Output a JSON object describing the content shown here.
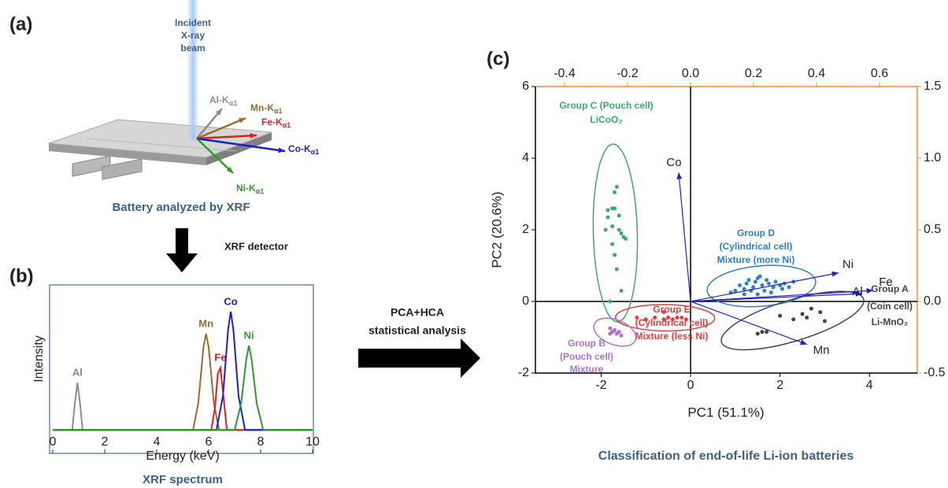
{
  "panels": {
    "a": "(a)",
    "b": "(b)",
    "c": "(c)"
  },
  "diagram": {
    "beam_label": [
      "Incident",
      "X-ray",
      "beam"
    ],
    "emissions": [
      {
        "text": "Al-K",
        "sub": "α1",
        "color": "#8c8c8c"
      },
      {
        "text": "Mn-K",
        "sub": "α1",
        "color": "#9c6a2e"
      },
      {
        "text": "Fe-K",
        "sub": "α1",
        "color": "#e02020"
      },
      {
        "text": "Co-K",
        "sub": "α1",
        "color": "#1f1fc8"
      },
      {
        "text": "Ni-K",
        "sub": "α1",
        "color": "#2e9a2e"
      }
    ],
    "battery_caption": "Battery analyzed by XRF",
    "detector": "XRF detector",
    "analysis": [
      "PCA+HCA",
      "statistical analysis"
    ]
  },
  "chart_data": [
    {
      "type": "line",
      "xlabel": "Energy (keV)",
      "ylabel": "Intensity",
      "caption": "XRF spectrum",
      "xlim": [
        0,
        10
      ],
      "xticks": [
        0,
        2,
        4,
        6,
        8,
        10
      ],
      "ylim": [
        0,
        100
      ],
      "series": [
        {
          "name": "Al",
          "color": "#8c8c8c",
          "x": [
            0,
            0.75,
            0.85,
            0.95,
            1.05,
            1.15,
            10
          ],
          "values": [
            2,
            2,
            20,
            34,
            20,
            2,
            2
          ]
        },
        {
          "name": "Mn",
          "color": "#9c6a2e",
          "x": [
            0,
            5.4,
            5.6,
            5.8,
            5.9,
            6.0,
            6.2,
            6.4,
            10
          ],
          "values": [
            2,
            2,
            20,
            58,
            67,
            58,
            20,
            2,
            2
          ]
        },
        {
          "name": "Fe",
          "color": "#e02020",
          "x": [
            0,
            6.1,
            6.25,
            6.35,
            6.45,
            6.55,
            6.7,
            10
          ],
          "values": [
            2,
            2,
            18,
            40,
            44,
            28,
            2,
            2
          ]
        },
        {
          "name": "Co",
          "color": "#1f1fc8",
          "x": [
            0,
            6.3,
            6.55,
            6.75,
            6.85,
            6.95,
            7.15,
            7.4,
            10
          ],
          "values": [
            2,
            2,
            25,
            70,
            82,
            70,
            25,
            2,
            2
          ]
        },
        {
          "name": "Ni",
          "color": "#2e9a2e",
          "x": [
            0,
            7.0,
            7.25,
            7.45,
            7.55,
            7.65,
            7.85,
            8.1,
            10
          ],
          "values": [
            2,
            2,
            20,
            50,
            59,
            50,
            20,
            2,
            2
          ]
        }
      ]
    },
    {
      "type": "scatter",
      "xlabel": "PC1 (51.1%)",
      "ylabel": "PC2 (20.6%)",
      "caption": "Classification of end-of-life Li-ion batteries",
      "xlim": [
        -3.47,
        5.07
      ],
      "xticks": [
        -2,
        0,
        2,
        4
      ],
      "ylim": [
        -2,
        6
      ],
      "yticks": [
        -2,
        0,
        2,
        4,
        6
      ],
      "x2lim": [
        -0.4925,
        0.72
      ],
      "x2ticks": [
        -0.4,
        -0.2,
        {
          "value": 0,
          "label": "0.0"
        },
        0.2,
        0.4,
        0.6
      ],
      "y2lim": [
        -0.5,
        1.5
      ],
      "y2ticks": [
        -0.5,
        {
          "value": 0,
          "label": "0.0"
        },
        0.5,
        {
          "value": 1,
          "label": "1.0"
        },
        1.5
      ],
      "series": [
        {
          "label": [
            "Group C (Pouch cell)",
            "LiCoO₂"
          ],
          "color": "#3daa6a",
          "x": [
            -1.75,
            -1.85,
            -1.7,
            -1.65,
            -1.7,
            -1.6,
            -1.75,
            -1.6,
            -1.85,
            -1.9,
            -1.55,
            -1.45,
            -1.5,
            -1.7,
            -1.65,
            -1.75,
            -1.8,
            -1.55
          ],
          "values": [
            2.6,
            2.55,
            2.6,
            3.2,
            3.05,
            2.4,
            2.1,
            2.0,
            2.35,
            2.0,
            1.9,
            1.75,
            1.8,
            1.3,
            0.9,
            1.6,
            0.0,
            0.3
          ]
        },
        {
          "label": [
            "Group D",
            "(Cylindrical cell)",
            "Mixture (more Ni)"
          ],
          "color": "#2f7fd0",
          "x": [
            1.0,
            1.1,
            1.2,
            1.25,
            1.3,
            1.35,
            1.4,
            1.45,
            1.5,
            1.55,
            1.6,
            1.65,
            1.7,
            1.75,
            1.8,
            1.85,
            1.9,
            2.0,
            2.05,
            2.1,
            2.2,
            2.3,
            1.5,
            0.9,
            1.2
          ],
          "values": [
            0.3,
            0.45,
            0.35,
            0.5,
            0.6,
            0.3,
            0.4,
            0.55,
            0.65,
            0.7,
            0.45,
            0.3,
            0.6,
            0.5,
            0.25,
            0.4,
            0.55,
            0.45,
            0.35,
            0.5,
            0.4,
            0.55,
            0.2,
            0.25,
            0.2
          ]
        },
        {
          "label": [
            "Group E",
            "(Cylindrical cell)",
            "Mixture (less Ni)"
          ],
          "color": "#e04040",
          "x": [
            -1.2,
            -1.0,
            -0.8,
            -0.6,
            -0.5,
            -0.4,
            -0.3,
            -0.2,
            -0.1,
            -0.6
          ],
          "values": [
            -0.45,
            -0.5,
            -0.45,
            -0.3,
            -0.45,
            -0.5,
            -0.45,
            -0.45,
            -0.5,
            -0.5
          ]
        },
        {
          "label": [
            "Group B",
            "(Pouch cell)",
            "Mixture"
          ],
          "color": "#b070d0",
          "x": [
            -1.8,
            -1.75,
            -1.7,
            -1.65,
            -1.6,
            -1.55,
            -1.8
          ],
          "values": [
            -0.75,
            -0.85,
            -0.8,
            -0.9,
            -0.85,
            -0.95,
            -0.9
          ]
        },
        {
          "label": [
            "Group A",
            "(Coin cell)",
            "Li-MnO₂"
          ],
          "color": "#444444",
          "x": [
            1.5,
            1.6,
            1.7,
            2.0,
            2.3,
            2.5,
            2.6,
            2.9,
            3.0,
            2.7
          ],
          "values": [
            -0.9,
            -0.85,
            -0.85,
            -0.4,
            -0.5,
            -0.35,
            -0.45,
            -0.3,
            -0.55,
            -0.2
          ]
        }
      ],
      "loadings": [
        {
          "name": "Co",
          "x": -0.0375,
          "y": 0.9
        },
        {
          "name": "Ni",
          "x": 0.47,
          "y": 0.2
        },
        {
          "name": "Al",
          "x": 0.545,
          "y": 0.055
        },
        {
          "name": "Fe",
          "x": 0.58,
          "y": 0.077
        },
        {
          "name": "Mn",
          "x": 0.37,
          "y": -0.3
        }
      ],
      "loading_color": "#1f1fc8",
      "axis2_color": "#e8912d"
    }
  ]
}
